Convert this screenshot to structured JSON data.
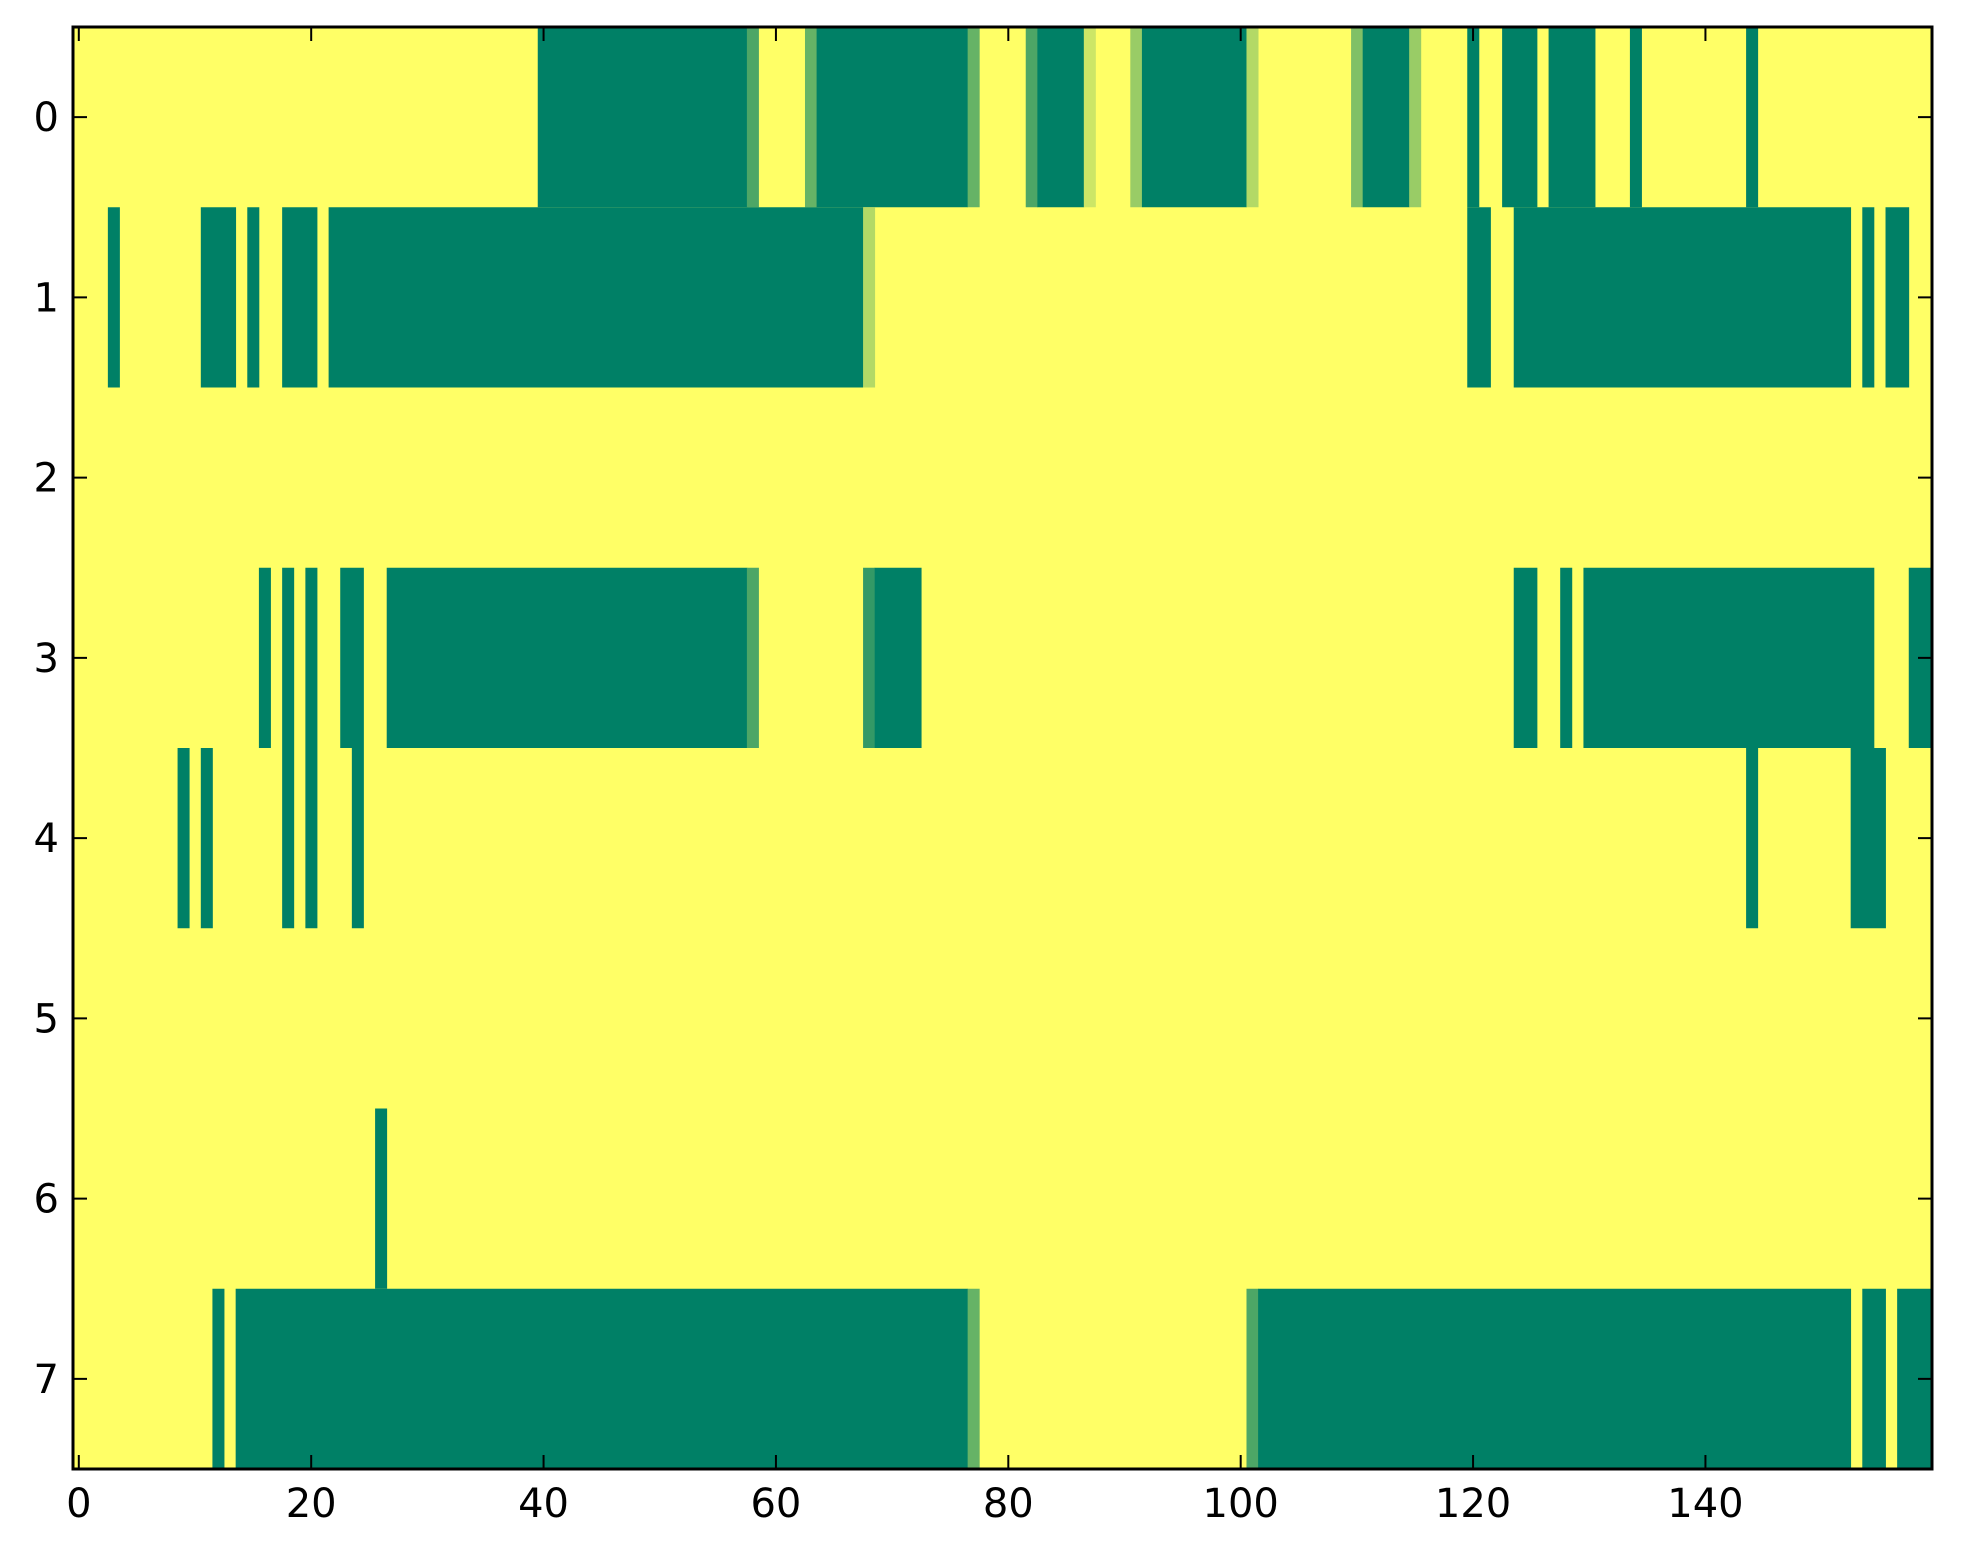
{
  "chart_data": {
    "type": "heatmap",
    "title": "",
    "xlabel": "",
    "ylabel": "",
    "xlim": [
      -0.5,
      159.5
    ],
    "ylim": [
      7.5,
      -0.5
    ],
    "x_ticks": [
      0,
      20,
      40,
      60,
      80,
      100,
      120,
      140
    ],
    "y_ticks": [
      0,
      1,
      2,
      3,
      4,
      5,
      6,
      7
    ],
    "grid": false,
    "legend": "none",
    "n_columns": 160,
    "rows": [
      {
        "row": 0,
        "on": [
          [
            40,
            57
          ],
          [
            58,
            58
          ],
          [
            63,
            63
          ],
          [
            64,
            76
          ],
          [
            77,
            77
          ],
          [
            82,
            82
          ],
          [
            83,
            86
          ],
          [
            87,
            87
          ],
          [
            91,
            91
          ],
          [
            92,
            100
          ],
          [
            101,
            101
          ],
          [
            110,
            110
          ],
          [
            111,
            114
          ],
          [
            115,
            115
          ],
          [
            120,
            120
          ],
          [
            123,
            125
          ],
          [
            127,
            130
          ],
          [
            134,
            134
          ],
          [
            144,
            144
          ]
        ]
      },
      {
        "row": 1,
        "on": [
          [
            3,
            3
          ],
          [
            11,
            13
          ],
          [
            15,
            15
          ],
          [
            18,
            20
          ],
          [
            22,
            67
          ],
          [
            68,
            68
          ],
          [
            120,
            121
          ],
          [
            124,
            152
          ],
          [
            154,
            154
          ],
          [
            156,
            157
          ]
        ]
      },
      {
        "row": 2,
        "on": []
      },
      {
        "row": 3,
        "on": [
          [
            16,
            16
          ],
          [
            18,
            18
          ],
          [
            20,
            20
          ],
          [
            23,
            24
          ],
          [
            27,
            57
          ],
          [
            58,
            58
          ],
          [
            68,
            68
          ],
          [
            69,
            72
          ],
          [
            124,
            125
          ],
          [
            128,
            128
          ],
          [
            130,
            154
          ],
          [
            158,
            159
          ]
        ]
      },
      {
        "row": 4,
        "on": [
          [
            9,
            9
          ],
          [
            11,
            11
          ],
          [
            18,
            18
          ],
          [
            20,
            20
          ],
          [
            24,
            24
          ],
          [
            144,
            144
          ],
          [
            153,
            155
          ]
        ]
      },
      {
        "row": 5,
        "on": []
      },
      {
        "row": 6,
        "on": [
          [
            26,
            26
          ]
        ]
      },
      {
        "row": 7,
        "on": [
          [
            12,
            12
          ],
          [
            14,
            76
          ],
          [
            77,
            77
          ],
          [
            101,
            101
          ],
          [
            102,
            152
          ],
          [
            154,
            155
          ],
          [
            157,
            159
          ]
        ]
      }
    ],
    "partial_cells": [
      {
        "row": 0,
        "col": 58,
        "level": 0.7
      },
      {
        "row": 0,
        "col": 63,
        "level": 0.6
      },
      {
        "row": 0,
        "col": 77,
        "level": 0.6
      },
      {
        "row": 0,
        "col": 82,
        "level": 0.7
      },
      {
        "row": 0,
        "col": 87,
        "level": 0.2
      },
      {
        "row": 0,
        "col": 91,
        "level": 0.4
      },
      {
        "row": 0,
        "col": 101,
        "level": 0.3
      },
      {
        "row": 0,
        "col": 110,
        "level": 0.5
      },
      {
        "row": 0,
        "col": 115,
        "level": 0.4
      },
      {
        "row": 1,
        "col": 68,
        "level": 0.3
      },
      {
        "row": 3,
        "col": 58,
        "level": 0.7
      },
      {
        "row": 3,
        "col": 68,
        "level": 0.8
      },
      {
        "row": 7,
        "col": 77,
        "level": 0.6
      },
      {
        "row": 7,
        "col": 101,
        "level": 0.7
      }
    ],
    "colormap": {
      "low": "#ffff66",
      "high": "#008066"
    }
  },
  "colors": {
    "background": "#ffffff",
    "axis": "#000000"
  }
}
